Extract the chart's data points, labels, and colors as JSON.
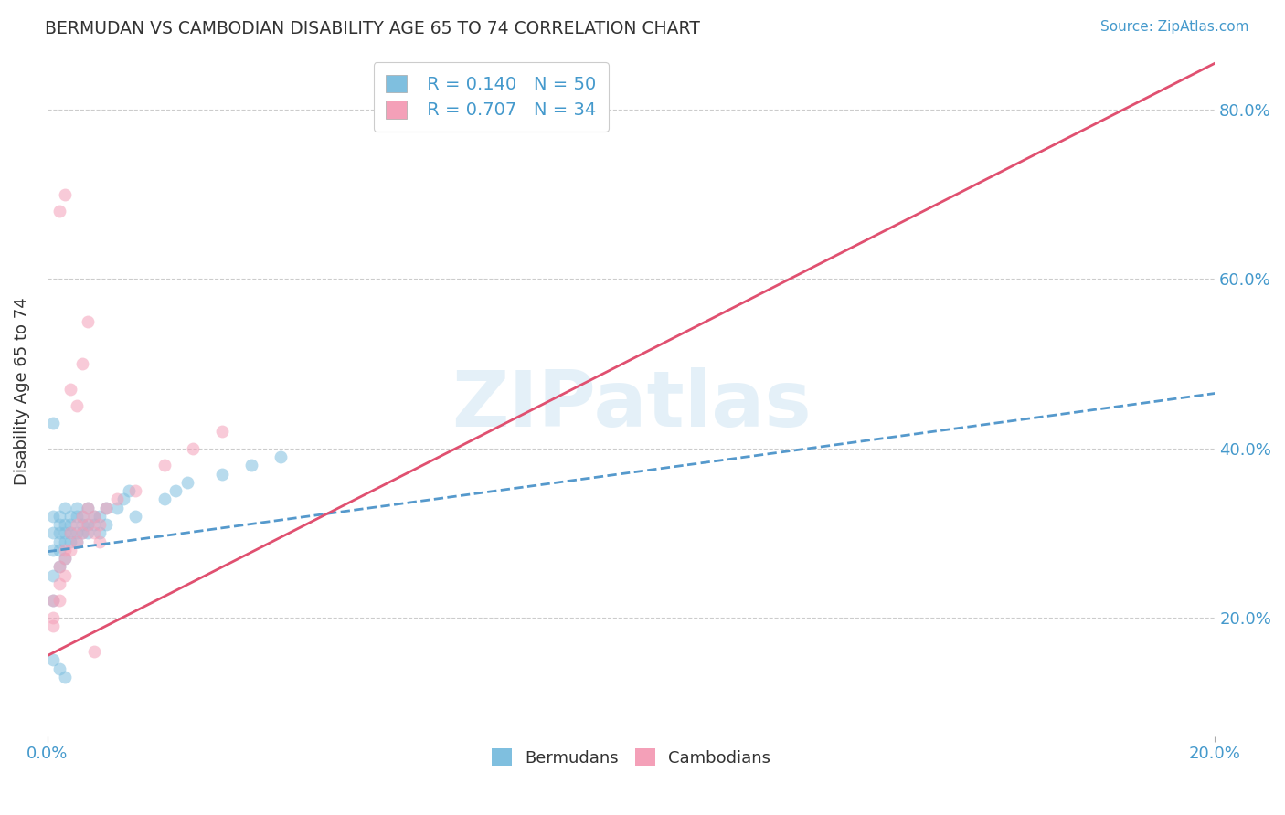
{
  "title": "BERMUDAN VS CAMBODIAN DISABILITY AGE 65 TO 74 CORRELATION CHART",
  "ylabel": "Disability Age 65 to 74",
  "source_text": "Source: ZipAtlas.com",
  "legend_r1": "R = 0.140",
  "legend_n1": "N = 50",
  "legend_r2": "R = 0.707",
  "legend_n2": "N = 34",
  "label1": "Bermudans",
  "label2": "Cambodians",
  "color1": "#7fbfdf",
  "color2": "#f4a0b8",
  "line_color1": "#5599cc",
  "line_color2": "#e05070",
  "bg_color": "#ffffff",
  "grid_color": "#cccccc",
  "title_color": "#333333",
  "axis_label_color": "#4499cc",
  "legend_text_color": "#4499cc",
  "xlim": [
    0.0,
    0.2
  ],
  "ylim": [
    0.06,
    0.875
  ],
  "x_ticks": [
    0.0,
    0.2
  ],
  "x_tick_labels": [
    "0.0%",
    "20.0%"
  ],
  "y_ticks": [
    0.2,
    0.4,
    0.6,
    0.8
  ],
  "y_tick_labels": [
    "20.0%",
    "40.0%",
    "60.0%",
    "80.0%"
  ],
  "bermudans_x": [
    0.001,
    0.001,
    0.001,
    0.001,
    0.001,
    0.002,
    0.002,
    0.002,
    0.002,
    0.002,
    0.002,
    0.003,
    0.003,
    0.003,
    0.003,
    0.003,
    0.004,
    0.004,
    0.004,
    0.004,
    0.005,
    0.005,
    0.005,
    0.005,
    0.006,
    0.006,
    0.006,
    0.007,
    0.007,
    0.007,
    0.008,
    0.008,
    0.009,
    0.009,
    0.01,
    0.01,
    0.012,
    0.013,
    0.014,
    0.015,
    0.02,
    0.022,
    0.024,
    0.03,
    0.035,
    0.04,
    0.001,
    0.001,
    0.002,
    0.003
  ],
  "bermudans_y": [
    0.28,
    0.3,
    0.32,
    0.25,
    0.22,
    0.3,
    0.31,
    0.29,
    0.32,
    0.28,
    0.26,
    0.3,
    0.29,
    0.31,
    0.27,
    0.33,
    0.31,
    0.3,
    0.32,
    0.29,
    0.3,
    0.32,
    0.29,
    0.33,
    0.31,
    0.3,
    0.32,
    0.31,
    0.33,
    0.3,
    0.32,
    0.31,
    0.32,
    0.3,
    0.31,
    0.33,
    0.33,
    0.34,
    0.35,
    0.32,
    0.34,
    0.35,
    0.36,
    0.37,
    0.38,
    0.39,
    0.43,
    0.15,
    0.14,
    0.13
  ],
  "cambodians_x": [
    0.001,
    0.001,
    0.001,
    0.002,
    0.002,
    0.002,
    0.003,
    0.003,
    0.003,
    0.004,
    0.004,
    0.005,
    0.005,
    0.006,
    0.006,
    0.007,
    0.007,
    0.008,
    0.008,
    0.009,
    0.009,
    0.01,
    0.012,
    0.015,
    0.02,
    0.025,
    0.03,
    0.002,
    0.003,
    0.004,
    0.005,
    0.006,
    0.007,
    0.008
  ],
  "cambodians_y": [
    0.22,
    0.2,
    0.19,
    0.24,
    0.22,
    0.26,
    0.25,
    0.28,
    0.27,
    0.28,
    0.3,
    0.29,
    0.31,
    0.3,
    0.32,
    0.31,
    0.33,
    0.32,
    0.3,
    0.31,
    0.29,
    0.33,
    0.34,
    0.35,
    0.38,
    0.4,
    0.42,
    0.68,
    0.7,
    0.47,
    0.45,
    0.5,
    0.55,
    0.16
  ],
  "line1_x0": 0.0,
  "line1_y0": 0.278,
  "line1_x1": 0.2,
  "line1_y1": 0.465,
  "line2_x0": 0.0,
  "line2_y0": 0.155,
  "line2_x1": 0.2,
  "line2_y1": 0.855,
  "watermark": "ZIPatlas",
  "figsize": [
    14.06,
    8.92
  ],
  "dpi": 100
}
